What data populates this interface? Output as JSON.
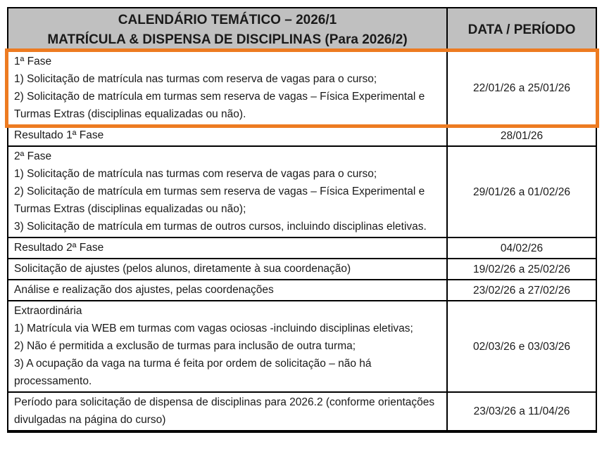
{
  "colors": {
    "header_bg": "#c0c0c0",
    "highlight_border": "#ed7b21",
    "table_border": "#000000"
  },
  "header": {
    "title_line1": "CALENDÁRIO TEMÁTICO – 2026/1",
    "title_line2": "MATRÍCULA & DISPENSA DE DISCIPLINAS (Para 2026/2)",
    "date_column": "DATA / PERÍODO"
  },
  "rows": [
    {
      "description": "1ª Fase\n1) Solicitação de matrícula nas turmas com reserva de vagas para o curso;\n2) Solicitação de matrícula em turmas sem reserva de vagas – Física Experimental e Turmas Extras (disciplinas equalizadas ou não).",
      "date": "22/01/26 a 25/01/26",
      "highlighted": true
    },
    {
      "description": "Resultado 1ª Fase",
      "date": "28/01/26",
      "highlighted": false
    },
    {
      "description": "2ª Fase\n1) Solicitação de matrícula nas turmas com reserva de vagas para o curso;\n2) Solicitação de matrícula em turmas sem reserva de vagas – Física Experimental e Turmas Extras (disciplinas equalizadas ou não);\n3) Solicitação de matrícula em turmas de outros cursos, incluindo disciplinas eletivas.",
      "date": "29/01/26 a 01/02/26",
      "highlighted": false
    },
    {
      "description": "Resultado 2ª Fase",
      "date": "04/02/26",
      "highlighted": false
    },
    {
      "description": "Solicitação de ajustes (pelos alunos, diretamente à sua coordenação)",
      "date": "19/02/26 a 25/02/26",
      "highlighted": false
    },
    {
      "description": "Análise e realização dos ajustes, pelas coordenações",
      "date": "23/02/26 a 27/02/26",
      "highlighted": false
    },
    {
      "description": "Extraordinária\n1) Matrícula via WEB em turmas com vagas ociosas -incluindo disciplinas eletivas;\n2) Não é permitida a exclusão de turmas para inclusão de outra turma;\n3) A ocupação da vaga na turma é feita por ordem de solicitação – não há processamento.",
      "date": "02/03/26 e 03/03/26",
      "highlighted": false
    },
    {
      "description": "Período para solicitação de dispensa de disciplinas para 2026.2 (conforme orientações divulgadas na página do curso)",
      "date": "23/03/26 a 11/04/26",
      "highlighted": false
    }
  ]
}
